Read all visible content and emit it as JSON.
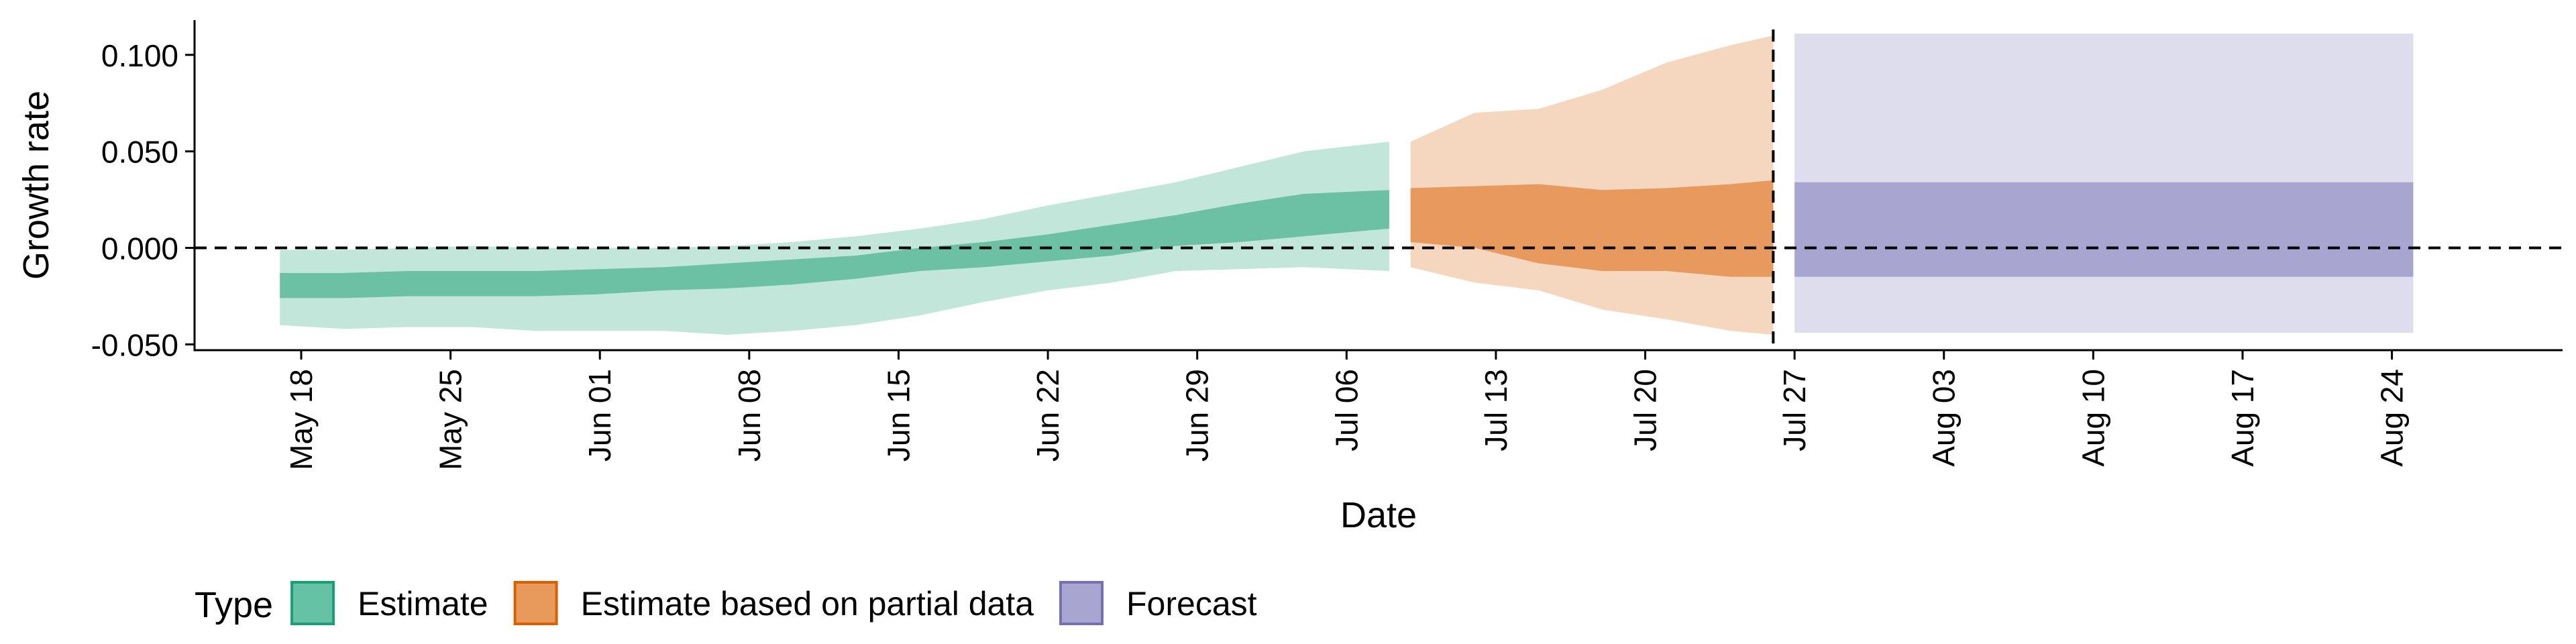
{
  "chart_data": {
    "type": "area",
    "xlabel": "Date",
    "ylabel": "Growth rate",
    "x_range": [
      "2020-05-13",
      "2020-09-01"
    ],
    "ylim": [
      -0.053,
      0.118
    ],
    "y_ticks": [
      -0.05,
      0.0,
      0.05,
      0.1
    ],
    "y_tick_labels": [
      "-0.050",
      "0.000",
      "0.050",
      "0.100"
    ],
    "x_ticks": [
      "2020-05-18",
      "2020-05-25",
      "2020-06-01",
      "2020-06-08",
      "2020-06-15",
      "2020-06-22",
      "2020-06-29",
      "2020-07-06",
      "2020-07-13",
      "2020-07-20",
      "2020-07-27",
      "2020-08-03",
      "2020-08-10",
      "2020-08-17",
      "2020-08-24"
    ],
    "x_tick_labels": [
      "May 18",
      "May 25",
      "Jun 01",
      "Jun 08",
      "Jun 15",
      "Jun 22",
      "Jun 29",
      "Jul 06",
      "Jul 13",
      "Jul 20",
      "Jul 27",
      "Aug 03",
      "Aug 10",
      "Aug 17",
      "Aug 24"
    ],
    "reference_lines": {
      "horizontal_y": 0.0,
      "vertical_date": "2020-07-26"
    },
    "grid": false,
    "legend": {
      "title": "Type",
      "placement": "bottom-left",
      "entries": [
        {
          "label": "Estimate",
          "fill": "#66c2a5",
          "stroke": "#1b9e77"
        },
        {
          "label": "Estimate based on partial data",
          "fill": "#e89a5c",
          "stroke": "#d95f02"
        },
        {
          "label": "Forecast",
          "fill": "#a8a5d1",
          "stroke": "#7570b3"
        }
      ]
    },
    "series": [
      {
        "name": "Estimate",
        "outer_fill": "#c3e6db",
        "inner_fill": "#6cc1a4",
        "x": [
          "2020-05-17",
          "2020-05-20",
          "2020-05-23",
          "2020-05-26",
          "2020-05-29",
          "2020-06-01",
          "2020-06-04",
          "2020-06-07",
          "2020-06-10",
          "2020-06-13",
          "2020-06-16",
          "2020-06-19",
          "2020-06-22",
          "2020-06-25",
          "2020-06-28",
          "2020-07-01",
          "2020-07-04",
          "2020-07-08"
        ],
        "outer_upper": [
          -0.001,
          -0.001,
          0.0,
          0.001,
          0.0,
          0.0,
          0.0,
          0.001,
          0.003,
          0.006,
          0.01,
          0.015,
          0.022,
          0.028,
          0.034,
          0.042,
          0.05,
          0.055
        ],
        "inner_upper": [
          -0.013,
          -0.013,
          -0.012,
          -0.012,
          -0.012,
          -0.011,
          -0.01,
          -0.008,
          -0.006,
          -0.004,
          0.0,
          0.003,
          0.007,
          0.012,
          0.017,
          0.023,
          0.028,
          0.03
        ],
        "inner_lower": [
          -0.026,
          -0.026,
          -0.025,
          -0.025,
          -0.025,
          -0.024,
          -0.022,
          -0.021,
          -0.019,
          -0.016,
          -0.012,
          -0.01,
          -0.007,
          -0.004,
          0.001,
          0.003,
          0.006,
          0.01
        ],
        "outer_lower": [
          -0.04,
          -0.042,
          -0.041,
          -0.041,
          -0.043,
          -0.043,
          -0.043,
          -0.045,
          -0.043,
          -0.04,
          -0.035,
          -0.028,
          -0.022,
          -0.018,
          -0.012,
          -0.011,
          -0.01,
          -0.012
        ]
      },
      {
        "name": "Estimate based on partial data",
        "outer_fill": "#f5d7c0",
        "inner_fill": "#e8995e",
        "x": [
          "2020-07-09",
          "2020-07-12",
          "2020-07-15",
          "2020-07-18",
          "2020-07-21",
          "2020-07-24",
          "2020-07-26"
        ],
        "outer_upper": [
          0.055,
          0.07,
          0.072,
          0.082,
          0.096,
          0.105,
          0.11
        ],
        "inner_upper": [
          0.031,
          0.032,
          0.033,
          0.03,
          0.031,
          0.033,
          0.035
        ],
        "inner_lower": [
          0.003,
          0.0,
          -0.008,
          -0.012,
          -0.012,
          -0.015,
          -0.015
        ],
        "outer_lower": [
          -0.01,
          -0.018,
          -0.022,
          -0.032,
          -0.037,
          -0.043,
          -0.045
        ]
      },
      {
        "name": "Forecast",
        "outer_fill": "#dedded",
        "inner_fill": "#a8a5d1",
        "x": [
          "2020-07-27",
          "2020-08-25"
        ],
        "outer_upper": [
          0.111,
          0.111
        ],
        "inner_upper": [
          0.034,
          0.034
        ],
        "inner_lower": [
          -0.015,
          -0.015
        ],
        "outer_lower": [
          -0.044,
          -0.044
        ]
      }
    ]
  }
}
